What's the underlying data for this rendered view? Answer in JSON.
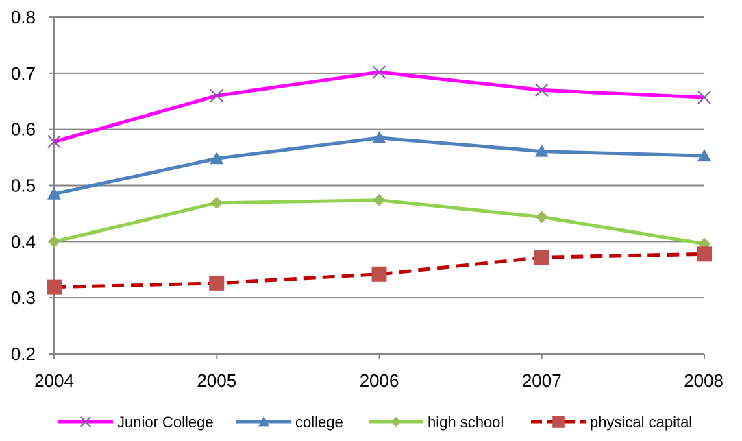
{
  "chart_data": {
    "type": "line",
    "x": [
      "2004",
      "2005",
      "2006",
      "2007",
      "2008"
    ],
    "ylim": [
      0.2,
      0.8
    ],
    "yticks": [
      "0.2",
      "0.3",
      "0.4",
      "0.5",
      "0.6",
      "0.7",
      "0.8"
    ],
    "grid": true,
    "legend_position": "bottom",
    "series": [
      {
        "name": "Junior College",
        "values": [
          0.578,
          0.66,
          0.702,
          0.67,
          0.657
        ],
        "color": "#ff00ff",
        "marker": "x",
        "marker_color": "#7a5aa0",
        "dash": "solid"
      },
      {
        "name": "college",
        "values": [
          0.485,
          0.548,
          0.585,
          0.561,
          0.553
        ],
        "color": "#4f81bd",
        "marker": "triangle",
        "marker_color": "#4f81bd",
        "dash": "solid"
      },
      {
        "name": "high school",
        "values": [
          0.4,
          0.469,
          0.474,
          0.444,
          0.396
        ],
        "color": "#92d050",
        "marker": "diamond",
        "marker_color": "#9bbb59",
        "dash": "solid"
      },
      {
        "name": "physical capital",
        "values": [
          0.319,
          0.326,
          0.342,
          0.372,
          0.378
        ],
        "color": "#c00000",
        "marker": "square",
        "marker_color": "#c0504d",
        "dash": "dashed"
      }
    ]
  }
}
